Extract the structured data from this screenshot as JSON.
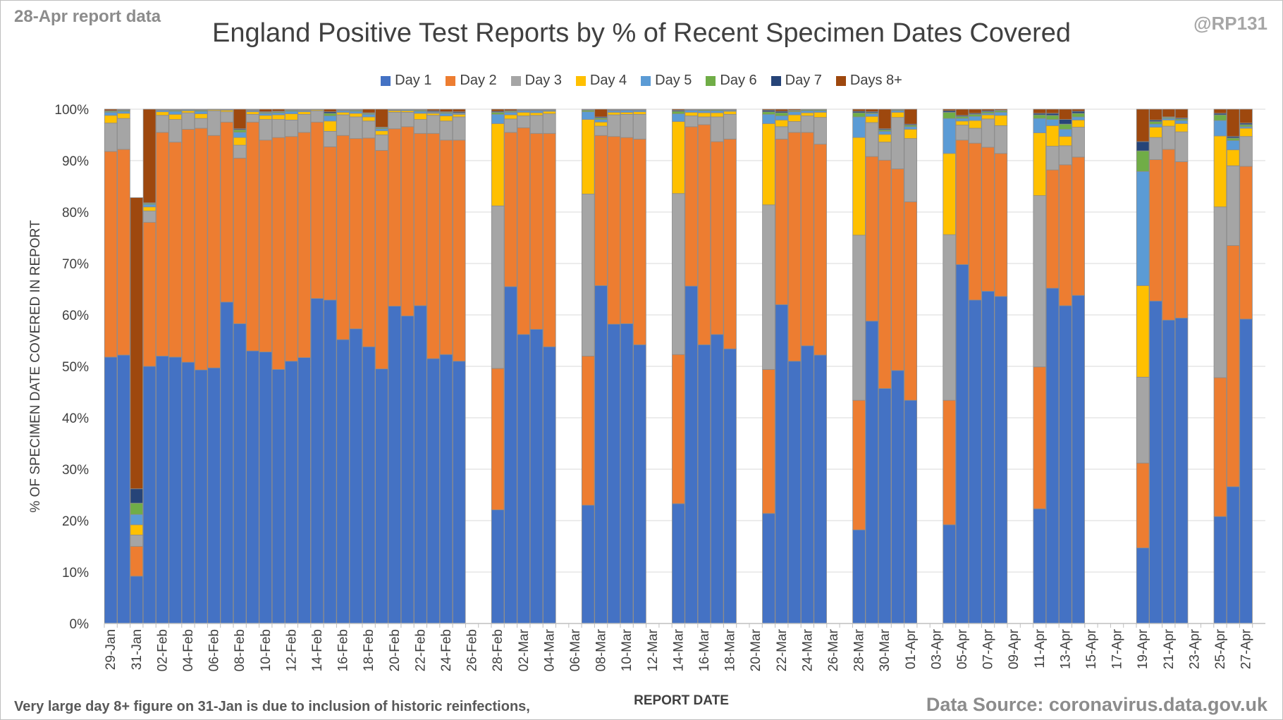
{
  "header": {
    "report_note": "28-Apr report data",
    "handle": "@RP131"
  },
  "footer": {
    "note": "Very large day 8+ figure on 31-Jan is due to inclusion of historic reinfections,",
    "source": "Data Source: coronavirus.data.gov.uk"
  },
  "colors": {
    "Day 1": "#4472c4",
    "Day 2": "#ed7d31",
    "Day 3": "#a5a5a5",
    "Day 4": "#ffc000",
    "Day 5": "#5b9bd5",
    "Day 6": "#70ad47",
    "Day 7": "#264478",
    "Days 8+": "#9e480e",
    "gridline": "#d9d9d9",
    "bar_border": "#8c8c8c"
  },
  "chart_data": {
    "type": "bar",
    "stacked": true,
    "title": "England Positive Test Reports by % of Recent Specimen Dates Covered",
    "xlabel": "REPORT DATE",
    "ylabel": "% OF SPECIMEN DATE COVERED IN REPORT",
    "ylim": [
      0,
      100
    ],
    "y_ticks": [
      "0%",
      "10%",
      "20%",
      "30%",
      "40%",
      "50%",
      "60%",
      "70%",
      "80%",
      "90%",
      "100%"
    ],
    "grid": true,
    "legend": "top",
    "series_names": [
      "Day 1",
      "Day 2",
      "Day 3",
      "Day 4",
      "Day 5",
      "Day 6",
      "Day 7",
      "Days 8+"
    ],
    "categories": [
      "29-Jan",
      "30-Jan",
      "31-Jan",
      "01-Feb",
      "02-Feb",
      "03-Feb",
      "04-Feb",
      "05-Feb",
      "06-Feb",
      "07-Feb",
      "08-Feb",
      "09-Feb",
      "10-Feb",
      "11-Feb",
      "12-Feb",
      "13-Feb",
      "14-Feb",
      "15-Feb",
      "16-Feb",
      "17-Feb",
      "18-Feb",
      "19-Feb",
      "20-Feb",
      "21-Feb",
      "22-Feb",
      "23-Feb",
      "24-Feb",
      "25-Feb",
      "26-Feb",
      "27-Feb",
      "28-Feb",
      "01-Mar",
      "02-Mar",
      "03-Mar",
      "04-Mar",
      "05-Mar",
      "06-Mar",
      "07-Mar",
      "08-Mar",
      "09-Mar",
      "10-Mar",
      "11-Mar",
      "12-Mar",
      "13-Mar",
      "14-Mar",
      "15-Mar",
      "16-Mar",
      "17-Mar",
      "18-Mar",
      "19-Mar",
      "20-Mar",
      "21-Mar",
      "22-Mar",
      "23-Mar",
      "24-Mar",
      "25-Mar",
      "26-Mar",
      "27-Mar",
      "28-Mar",
      "29-Mar",
      "30-Mar",
      "31-Mar",
      "01-Apr",
      "02-Apr",
      "03-Apr",
      "04-Apr",
      "05-Apr",
      "06-Apr",
      "07-Apr",
      "08-Apr",
      "09-Apr",
      "10-Apr",
      "11-Apr",
      "12-Apr",
      "13-Apr",
      "14-Apr",
      "15-Apr",
      "16-Apr",
      "17-Apr",
      "18-Apr",
      "19-Apr",
      "20-Apr",
      "21-Apr",
      "22-Apr",
      "23-Apr",
      "24-Apr",
      "25-Apr",
      "26-Apr",
      "27-Apr",
      "28-Apr"
    ],
    "tick_labels": [
      "29-Jan",
      "31-Jan",
      "02-Feb",
      "04-Feb",
      "06-Feb",
      "08-Feb",
      "10-Feb",
      "12-Feb",
      "14-Feb",
      "16-Feb",
      "18-Feb",
      "20-Feb",
      "22-Feb",
      "24-Feb",
      "26-Feb",
      "28-Feb",
      "02-Mar",
      "04-Mar",
      "06-Mar",
      "08-Mar",
      "10-Mar",
      "12-Mar",
      "14-Mar",
      "16-Mar",
      "18-Mar",
      "20-Mar",
      "22-Mar",
      "24-Mar",
      "26-Mar",
      "28-Mar",
      "30-Mar",
      "01-Apr",
      "03-Apr",
      "05-Apr",
      "07-Apr",
      "09-Apr",
      "11-Apr",
      "13-Apr",
      "15-Apr",
      "17-Apr",
      "19-Apr",
      "21-Apr",
      "23-Apr",
      "25-Apr",
      "27-Apr"
    ],
    "values": [
      [
        51.8,
        40,
        5.5,
        1.5,
        0.6,
        0.2,
        0.1,
        0.3
      ],
      [
        52.2,
        40,
        6,
        1,
        0.4,
        0.2,
        0.1,
        0.1
      ],
      [
        9.2,
        5.8,
        2.2,
        2,
        2,
        2.2,
        2.8,
        56.6
      ],
      [
        50,
        28,
        2.2,
        0.8,
        0.5,
        0.2,
        0.1,
        18.2
      ],
      [
        52,
        43.5,
        3.3,
        0.7,
        0.3,
        0.1,
        0.05,
        0.05
      ],
      [
        51.8,
        41.8,
        4.4,
        1,
        0.6,
        0.2,
        0.1,
        0.1
      ],
      [
        50.8,
        45.3,
        3.2,
        0.4,
        0.2,
        0.05,
        0.02,
        0.03
      ],
      [
        49.3,
        47,
        1.9,
        0.9,
        0.5,
        0.2,
        0.1,
        0.1
      ],
      [
        49.7,
        45.2,
        4.8,
        0.2,
        0.05,
        0.02,
        0.01,
        0.02
      ],
      [
        62.5,
        35,
        2,
        0.3,
        0.1,
        0.05,
        0.02,
        0.03
      ],
      [
        58.3,
        32.2,
        2.5,
        1.5,
        1,
        0.5,
        0.2,
        3.8
      ],
      [
        53,
        44.5,
        1.5,
        0.5,
        0.2,
        0.1,
        0.1,
        0.1
      ],
      [
        52.8,
        41.2,
        4,
        0.8,
        0.4,
        0.2,
        0.1,
        0.5
      ],
      [
        49.4,
        45.1,
        3.5,
        0.9,
        0.4,
        0.2,
        0.1,
        0.4
      ],
      [
        51,
        43.7,
        3.2,
        1.2,
        0.5,
        0.2,
        0.1,
        0.1
      ],
      [
        51.7,
        43.8,
        3.5,
        0.5,
        0.2,
        0.1,
        0.1,
        0.1
      ],
      [
        63.2,
        34.3,
        2.2,
        0.2,
        0.05,
        0.02,
        0.01,
        0.02
      ],
      [
        62.9,
        29.8,
        3,
        2,
        1,
        0.5,
        0.3,
        0.5
      ],
      [
        55.2,
        39.7,
        4,
        0.5,
        0.3,
        0.1,
        0.1,
        0.1
      ],
      [
        57.3,
        37,
        4.2,
        0.7,
        0.4,
        0.2,
        0.1,
        0.1
      ],
      [
        53.8,
        40.6,
        3.3,
        0.8,
        0.5,
        0.2,
        0.1,
        0.7
      ],
      [
        49.5,
        42.5,
        3,
        0.8,
        0.4,
        0.2,
        0.1,
        3.5
      ],
      [
        61.7,
        34.5,
        3.2,
        0.3,
        0.1,
        0.05,
        0.1,
        0.05
      ],
      [
        59.8,
        36.8,
        2.8,
        0.3,
        0.2,
        0.03,
        0.02,
        0.05
      ],
      [
        61.8,
        33.5,
        2.7,
        1.2,
        0.4,
        0.2,
        0.1,
        0.1
      ],
      [
        51.5,
        43.8,
        3.5,
        0.4,
        0.2,
        0.1,
        0.2,
        0.3
      ],
      [
        52.3,
        41.7,
        3.7,
        1,
        0.5,
        0.2,
        0.1,
        0.5
      ],
      [
        51,
        43,
        4.5,
        0.5,
        0.2,
        0.1,
        0.2,
        0.5
      ],
      null,
      null,
      [
        22.1,
        27.5,
        31.6,
        16,
        1.8,
        0.4,
        0.2,
        0.4
      ],
      [
        65.5,
        30,
        2.6,
        0.8,
        0.5,
        0.2,
        0.1,
        0.3
      ],
      [
        56.2,
        40.2,
        2.3,
        0.7,
        0.3,
        0.1,
        0.1,
        0.1
      ],
      [
        57.2,
        38.1,
        3.5,
        0.5,
        0.4,
        0.1,
        0.1,
        0.1
      ],
      [
        53.8,
        41.5,
        3.8,
        0.5,
        0.2,
        0.1,
        0.05,
        0.05
      ],
      null,
      null,
      [
        23,
        29,
        31.5,
        14.5,
        1.5,
        0.3,
        0.1,
        0.1
      ],
      [
        65.7,
        29.2,
        1.8,
        0.8,
        0.5,
        0.3,
        0.2,
        1.5
      ],
      [
        58.2,
        36.5,
        4.2,
        0.5,
        0.3,
        0.1,
        0.1,
        0.1
      ],
      [
        58.3,
        36.2,
        4.5,
        0.4,
        0.4,
        0.1,
        0.05,
        0.05
      ],
      [
        54.2,
        40,
        4.8,
        0.5,
        0.3,
        0.1,
        0.05,
        0.05
      ],
      null,
      null,
      [
        23.3,
        29,
        31.3,
        14,
        1.5,
        0.5,
        0.2,
        0.2
      ],
      [
        65.6,
        31,
        2.1,
        0.7,
        0.4,
        0.1,
        0.05,
        0.05
      ],
      [
        54.2,
        42.8,
        1.5,
        0.8,
        0.4,
        0.2,
        0.05,
        0.05
      ],
      [
        56.2,
        37.5,
        4.8,
        0.8,
        0.4,
        0.2,
        0.05,
        0.05
      ],
      [
        53.4,
        40.8,
        4.8,
        0.6,
        0.2,
        0.1,
        0.05,
        0.05
      ],
      null,
      null,
      [
        21.4,
        28,
        32,
        15.8,
        1.8,
        0.5,
        0.3,
        0.2
      ],
      [
        62,
        32.2,
        2.4,
        1.3,
        0.8,
        0.6,
        0.3,
        0.4
      ],
      [
        51,
        44.5,
        2.1,
        1.3,
        0.6,
        0.2,
        0.1,
        0.2
      ],
      [
        54,
        41.5,
        3.2,
        0.6,
        0.4,
        0.2,
        0.05,
        0.05
      ],
      [
        52.2,
        41,
        5.2,
        1,
        0.3,
        0.2,
        0.05,
        0.05
      ],
      null,
      null,
      [
        18.2,
        25.2,
        32.1,
        19,
        4,
        0.8,
        0.3,
        0.4
      ],
      [
        58.8,
        32,
        6.6,
        1.2,
        0.5,
        0.2,
        0.2,
        0.5
      ],
      [
        45.7,
        44.4,
        3.5,
        1.5,
        0.6,
        0.3,
        0.2,
        3.8
      ],
      [
        49.2,
        39.2,
        10,
        1,
        0.3,
        0.15,
        0.05,
        0.1
      ],
      [
        43.4,
        38.6,
        12.3,
        1.8,
        0.5,
        0.3,
        0.2,
        2.9
      ],
      null,
      null,
      [
        19.2,
        24.2,
        32.2,
        15.8,
        6.8,
        1.2,
        0.3,
        0.3
      ],
      [
        69.8,
        24.2,
        2.9,
        0.8,
        0.5,
        0.4,
        0.2,
        1.2
      ],
      [
        62.9,
        30.5,
        2.9,
        1.5,
        0.8,
        0.4,
        0.2,
        0.8
      ],
      [
        64.6,
        28,
        5.5,
        0.8,
        0.3,
        0.3,
        0.2,
        0.3
      ],
      [
        63.6,
        27.8,
        5.4,
        2,
        0.6,
        0.3,
        0.1,
        0.2
      ],
      null,
      null,
      [
        22.3,
        27.6,
        33.3,
        12.2,
        2.8,
        0.7,
        0.3,
        0.8
      ],
      [
        65.2,
        23,
        4.6,
        4,
        1.2,
        0.8,
        0.4,
        0.8
      ],
      [
        61.8,
        27.4,
        3.7,
        1.8,
        1.4,
        1,
        0.9,
        2
      ],
      [
        63.8,
        26.9,
        5.8,
        1.4,
        0.6,
        0.7,
        0.4,
        0.4
      ],
      null,
      null,
      null,
      null,
      [
        14.7,
        16.5,
        16.7,
        17.8,
        22.2,
        4,
        1.8,
        6.3
      ],
      [
        62.7,
        27.5,
        4.3,
        2,
        0.6,
        0.5,
        0.3,
        2.1
      ],
      [
        59,
        33.2,
        4.5,
        1.2,
        0.3,
        0.2,
        0.1,
        1.5
      ],
      [
        59.4,
        30.4,
        5.8,
        1.6,
        0.6,
        0.3,
        0.2,
        1.7
      ],
      null,
      null,
      [
        20.8,
        27,
        33.2,
        13.8,
        3,
        1.1,
        0.3,
        0.8
      ],
      [
        26.6,
        46.9,
        15.5,
        3.1,
        1.8,
        0.5,
        0.3,
        5.3
      ],
      [
        59.2,
        29.7,
        5.8,
        1.6,
        0.3,
        0.4,
        0.3,
        2.7
      ]
    ]
  }
}
